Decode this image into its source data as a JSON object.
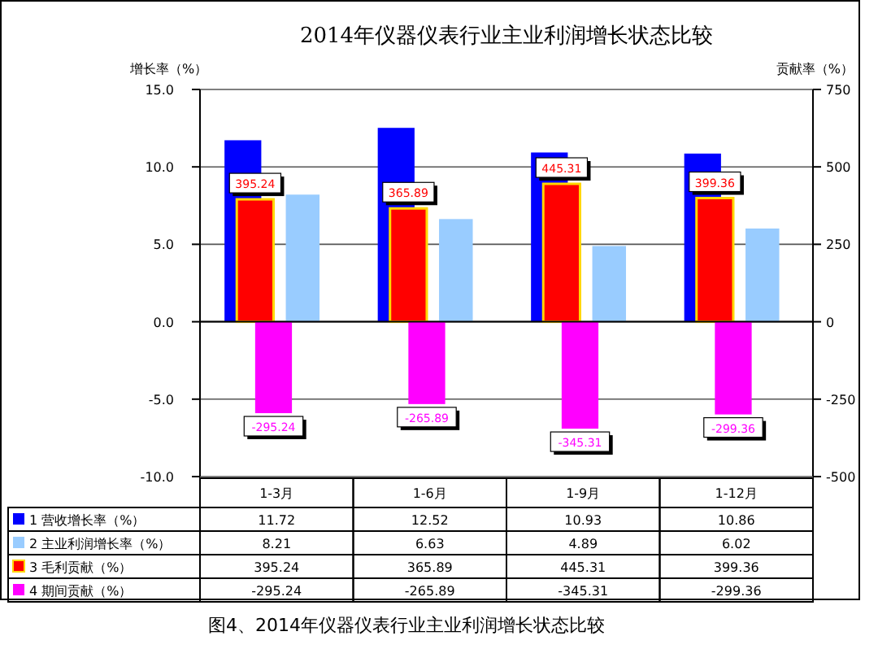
{
  "chart_data": {
    "type": "bar",
    "title": "2014年仪器仪表行业主业利润增长状态比较",
    "ylabel": "增长率（%）",
    "y2label": "贡献率（%）",
    "categories": [
      "1-3月",
      "1-6月",
      "1-9月",
      "1-12月"
    ],
    "series": [
      {
        "name": "1 营收增长率（%）",
        "color": "#0000ff",
        "values": [
          11.72,
          12.52,
          10.93,
          10.86
        ]
      },
      {
        "name": "2 主业利润增长率（%）",
        "color": "#99ccff",
        "values": [
          8.21,
          6.63,
          4.89,
          6.02
        ]
      },
      {
        "name": "3 毛利贡献（%）",
        "color": "#ff0000",
        "axis": "y2",
        "values": [
          395.24,
          365.89,
          445.31,
          399.36
        ]
      },
      {
        "name": "4 期间贡献（%）",
        "color": "#ff00ff",
        "axis": "y2",
        "values": [
          -295.24,
          -265.89,
          -345.31,
          -299.36
        ]
      }
    ],
    "ylim": [
      -10,
      15
    ],
    "yticks": [
      {
        "value": -10,
        "label": "-10.0"
      },
      {
        "value": -5,
        "label": "-5.0"
      },
      {
        "value": 0,
        "label": "0.0"
      },
      {
        "value": 5,
        "label": "5.0"
      },
      {
        "value": 10,
        "label": "10.0"
      },
      {
        "value": 15,
        "label": "15.0"
      }
    ],
    "y2lim": [
      -500,
      750
    ],
    "y2ticks": [
      -500,
      -250,
      0,
      250,
      500,
      750
    ],
    "grid": "y",
    "legend": "bottom",
    "data_labels": true,
    "annotations": [
      "图4、2014年仪器仪表行业主业利润增长状态比较",
      "395.24",
      "365.89",
      "445.31",
      "399.36",
      "-295.24",
      "-265.89",
      "-345.31",
      "-299.36"
    ]
  }
}
